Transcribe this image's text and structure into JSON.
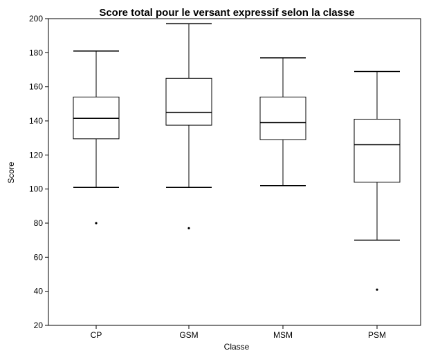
{
  "chart_data": {
    "type": "boxplot",
    "title": "Score total pour le versant expressif selon la classe",
    "xlabel": "Classe",
    "ylabel": "Score",
    "ylim": [
      20,
      200
    ],
    "yticks": [
      20,
      40,
      60,
      80,
      100,
      120,
      140,
      160,
      180,
      200
    ],
    "grid": false,
    "legend": "none",
    "categories": [
      "CP",
      "GSM",
      "MSM",
      "PSM"
    ],
    "boxes": [
      {
        "category": "CP",
        "whisker_low": 101,
        "q1": 129.5,
        "median": 141.5,
        "q3": 154,
        "whisker_high": 181,
        "outliers": [
          80
        ]
      },
      {
        "category": "GSM",
        "whisker_low": 101,
        "q1": 137.5,
        "median": 145,
        "q3": 165,
        "whisker_high": 197,
        "outliers": [
          77
        ]
      },
      {
        "category": "MSM",
        "whisker_low": 102,
        "q1": 129,
        "median": 139,
        "q3": 154,
        "whisker_high": 177,
        "outliers": []
      },
      {
        "category": "PSM",
        "whisker_low": 70,
        "q1": 104,
        "median": 126,
        "q3": 141,
        "whisker_high": 169,
        "outliers": [
          41
        ]
      }
    ],
    "colors": {
      "stroke": "#000000",
      "background": "#ffffff"
    }
  }
}
